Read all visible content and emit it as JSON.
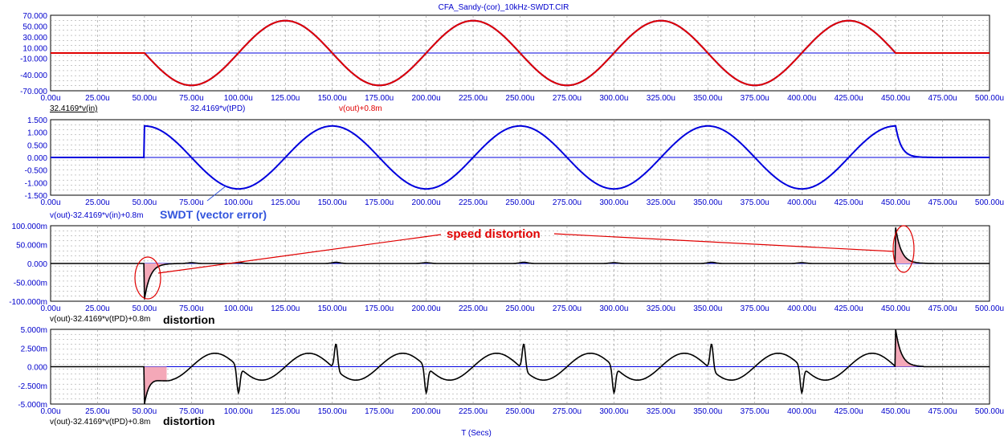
{
  "title": "CFA_Sandy-(cor)_10kHz-SWDT.CIR",
  "x_axis_label": "T (Secs)",
  "colors": {
    "background": "#ffffff",
    "grid": "#909090",
    "axis_text": "#0000cc",
    "trace_red": "#e00000",
    "trace_blue": "#0000dd",
    "trace_black": "#000000",
    "fill_pink": "#f4a8b8",
    "annotation_red": "#e00000",
    "annotation_blue": "#3355dd"
  },
  "annotations": {
    "swdt": "SWDT (vector error)",
    "speed": "speed distortion",
    "distortion1": "distortion",
    "distortion2": "distortion"
  },
  "chart_data": [
    {
      "type": "line",
      "panel": "plot1",
      "xlim": [
        0,
        500
      ],
      "x_tick_labels": [
        "0.00u",
        "25.00u",
        "50.00u",
        "75.00u",
        "100.00u",
        "125.00u",
        "150.00u",
        "175.00u",
        "200.00u",
        "225.00u",
        "250.00u",
        "275.00u",
        "300.00u",
        "325.00u",
        "350.00u",
        "375.00u",
        "400.00u",
        "425.00u",
        "450.00u",
        "475.00u",
        "500.00u"
      ],
      "ylim": [
        -70,
        70
      ],
      "y_tick_values": [
        70,
        50,
        30,
        10,
        -10,
        -40,
        -70
      ],
      "y_tick_labels": [
        "70.000",
        "50.000",
        "30.000",
        "10.000",
        "-10.000",
        "-40.000",
        "-70.000"
      ],
      "grid": true,
      "trace_labels": [
        "32.4169*v(in)",
        "32.4169*v(tPD)",
        "v(out)+0.8m"
      ],
      "series": [
        {
          "name": "32.4169*v(in)",
          "color": "#000000",
          "kind": "sine_burst",
          "offset": 0,
          "amplitude": 60,
          "start": 50,
          "end": 450,
          "period": 100,
          "phase_deg": 180
        },
        {
          "name": "32.4169*v(tPD)",
          "color": "#0000dd",
          "kind": "sine_burst",
          "offset": 0,
          "amplitude": 60,
          "start": 50,
          "end": 450,
          "period": 100,
          "phase_deg": 180
        },
        {
          "name": "v(out)+0.8m",
          "color": "#e00000",
          "kind": "sine_burst",
          "offset": 0,
          "amplitude": 60,
          "start": 50,
          "end": 450,
          "period": 100,
          "phase_deg": 180
        },
        {
          "name": "zero",
          "color": "#0000dd",
          "kind": "hline",
          "value": 0
        }
      ]
    },
    {
      "type": "line",
      "panel": "plot2",
      "xlim": [
        0,
        500
      ],
      "x_tick_labels": [
        "0.00u",
        "25.00u",
        "50.00u",
        "75.00u",
        "100.00u",
        "125.00u",
        "150.00u",
        "175.00u",
        "200.00u",
        "225.00u",
        "250.00u",
        "275.00u",
        "300.00u",
        "325.00u",
        "350.00u",
        "375.00u",
        "400.00u",
        "425.00u",
        "450.00u",
        "475.00u",
        "500.00u"
      ],
      "ylim": [
        -1.5,
        1.5
      ],
      "y_tick_values": [
        1.5,
        1.0,
        0.5,
        0,
        -0.5,
        -1.0,
        -1.5
      ],
      "y_tick_labels": [
        "1.500",
        "1.000",
        "0.500",
        "0.000",
        "-0.500",
        "-1.000",
        "-1.500"
      ],
      "grid": true,
      "trace_labels": [
        "v(out)-32.4169*v(in)+0.8m"
      ],
      "series": [
        {
          "name": "v(out)-32.4169*v(in)+0.8m",
          "color": "#0000dd",
          "kind": "sine_burst",
          "offset": 0,
          "amplitude": 1.25,
          "start": 50,
          "end": 450,
          "period": 100,
          "phase_deg": 90,
          "decay_tau": 3
        }
      ]
    },
    {
      "type": "area",
      "panel": "plot3",
      "xlim": [
        0,
        500
      ],
      "x_tick_labels": [
        "0.00u",
        "25.00u",
        "50.00u",
        "75.00u",
        "100.00u",
        "125.00u",
        "150.00u",
        "175.00u",
        "200.00u",
        "225.00u",
        "250.00u",
        "275.00u",
        "300.00u",
        "325.00u",
        "350.00u",
        "375.00u",
        "400.00u",
        "425.00u",
        "450.00u",
        "475.00u",
        "500.00u"
      ],
      "ylim": [
        -100,
        100
      ],
      "y_tick_values": [
        100,
        50,
        0,
        -50,
        -100
      ],
      "y_tick_labels": [
        "100.000m",
        "50.000m",
        "0.000",
        "-50.000m",
        "-100.000m"
      ],
      "grid": true,
      "trace_labels": [
        "v(out)-32.4169*v(tPD)+0.8m"
      ],
      "series": [
        {
          "name": "v(out)-32.4169*v(tPD)+0.8m",
          "color": "#000000",
          "kind": "spikes",
          "spikes": [
            {
              "t": 50,
              "amp": -95,
              "tau": 3
            },
            {
              "t": 450,
              "amp": 95,
              "tau": 3
            }
          ],
          "bumps": [
            {
              "t": 75,
              "amp": 2
            },
            {
              "t": 100,
              "amp": 2
            },
            {
              "t": 152,
              "amp": 3
            },
            {
              "t": 200,
              "amp": 2
            },
            {
              "t": 252,
              "amp": 3
            },
            {
              "t": 300,
              "amp": 2
            },
            {
              "t": 352,
              "amp": 3
            },
            {
              "t": 400,
              "amp": 2
            }
          ]
        }
      ]
    },
    {
      "type": "area",
      "panel": "plot4",
      "xlim": [
        0,
        500
      ],
      "x_tick_labels": [
        "0.00u",
        "25.00u",
        "50.00u",
        "75.00u",
        "100.00u",
        "125.00u",
        "150.00u",
        "175.00u",
        "200.00u",
        "225.00u",
        "250.00u",
        "275.00u",
        "300.00u",
        "325.00u",
        "350.00u",
        "375.00u",
        "400.00u",
        "425.00u",
        "450.00u",
        "475.00u",
        "500.00u"
      ],
      "ylim": [
        -5,
        5
      ],
      "y_tick_values": [
        5,
        2.5,
        0,
        -2.5,
        -5
      ],
      "y_tick_labels": [
        "5.000m",
        "2.500m",
        "0.000",
        "-2.500m",
        "-5.000m"
      ],
      "grid": true,
      "trace_labels": [
        "v(out)-32.4169*v(tPD)+0.8m"
      ],
      "series": [
        {
          "name": "v(out)-32.4169*v(tPD)+0.8m",
          "color": "#000000",
          "kind": "distortion",
          "ripple_amp": 2.0,
          "ripple_period": 50,
          "spikes": [
            {
              "t": 100,
              "amp": -3.5
            },
            {
              "t": 152,
              "amp": 3.5
            },
            {
              "t": 200,
              "amp": -3.5
            },
            {
              "t": 252,
              "amp": 3.5
            },
            {
              "t": 300,
              "amp": -3.5
            },
            {
              "t": 352,
              "amp": 3.5
            },
            {
              "t": 400,
              "amp": -3.5
            }
          ],
          "edges": [
            {
              "t": 50,
              "amp": -5,
              "tau": 3
            },
            {
              "t": 450,
              "amp": 5,
              "tau": 3
            }
          ]
        }
      ]
    }
  ]
}
